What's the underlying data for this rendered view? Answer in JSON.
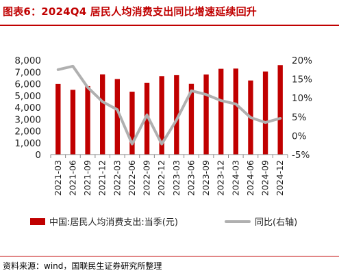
{
  "title": "图表6：2024Q4 居民人均消费支出同比增速延续回升",
  "source": "资料来源：wind，国联民生证券研究所整理",
  "chart_data": {
    "type": "bar+line",
    "categories": [
      "2021-03",
      "2021-06",
      "2021-09",
      "2021-12",
      "2022-03",
      "2022-06",
      "2022-09",
      "2022-12",
      "2023-03",
      "2023-06",
      "2023-09",
      "2023-12",
      "2024-03",
      "2024-06",
      "2024-09",
      "2024-12"
    ],
    "series": [
      {
        "name": "中国:居民人均消费支出:当季(元)",
        "type": "bar",
        "axis": "left",
        "color": "#c00000",
        "values": [
          5980,
          5490,
          5800,
          6800,
          6400,
          5330,
          6090,
          6650,
          6730,
          5990,
          6790,
          7270,
          7290,
          6280,
          7040,
          7580
        ]
      },
      {
        "name": "同比(右轴)",
        "type": "line",
        "axis": "right",
        "color": "#b0b0b0",
        "values": [
          17.5,
          18.4,
          12.8,
          9.0,
          6.9,
          -2.2,
          5.5,
          -2.2,
          4.2,
          11.9,
          10.9,
          9.3,
          8.4,
          4.8,
          3.5,
          4.6
        ]
      }
    ],
    "y_left": {
      "ylim": [
        0,
        8000
      ],
      "ticks": [
        "0",
        "1,000",
        "2,000",
        "3,000",
        "4,000",
        "5,000",
        "6,000",
        "7,000",
        "8,000"
      ]
    },
    "y_right": {
      "ylim": [
        -5,
        20
      ],
      "ticks": [
        "-5%",
        "0%",
        "5%",
        "10%",
        "15%",
        "20%"
      ]
    },
    "grid": false,
    "legend": "bottom"
  }
}
